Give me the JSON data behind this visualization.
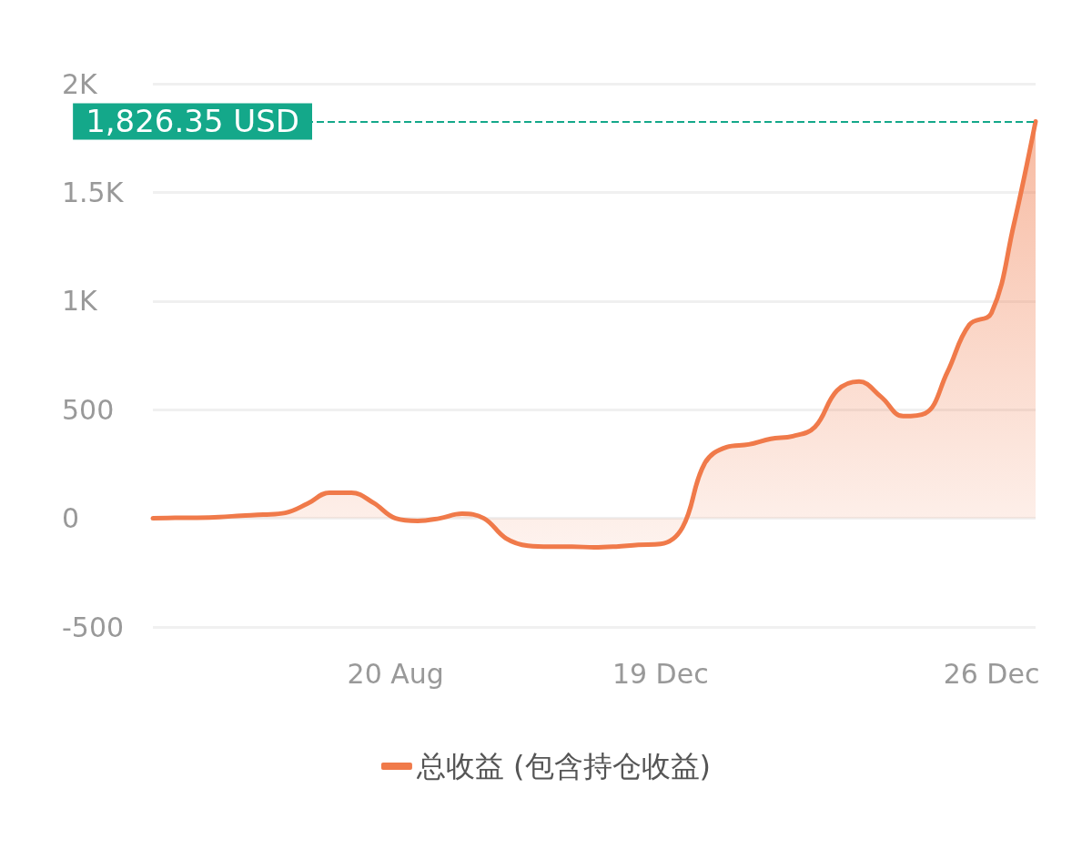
{
  "chart_data": {
    "type": "area",
    "categories": [
      null,
      null,
      null,
      null,
      null,
      null,
      null,
      null,
      null,
      null,
      null,
      "20 Aug",
      null,
      null,
      null,
      null,
      null,
      null,
      null,
      null,
      null,
      null,
      null,
      "19 Dec",
      null,
      null,
      null,
      null,
      null,
      null,
      null,
      null,
      null,
      null,
      null,
      null,
      null,
      null,
      "26 Dec",
      null,
      null
    ],
    "series": [
      {
        "name": "总收益 (包含持仓收益)",
        "color": "#f07a4a",
        "values": [
          0,
          2,
          3,
          6,
          12,
          17,
          25,
          67,
          118,
          118,
          71,
          0,
          -12,
          0,
          21,
          0,
          -92,
          -126,
          -130,
          -130,
          -134,
          -130,
          -122,
          -118,
          -42,
          252,
          328,
          340,
          366,
          378,
          420,
          588,
          630,
          559,
          470,
          483,
          672,
          891,
          945,
          1345,
          1826.35
        ]
      }
    ],
    "ylim": [
      -500,
      2000
    ],
    "yticks": [
      -500,
      0,
      500,
      {
        "value": 1000,
        "label": "1K"
      },
      {
        "value": 1500,
        "label": "1.5K"
      },
      {
        "value": 2000,
        "label": "2K"
      }
    ],
    "ref_lines": [
      {
        "axis": "y",
        "value": 1826.35,
        "label": "1,826.35 USD",
        "color": "#14a88a",
        "line_style": "dashed"
      }
    ],
    "grid": "y",
    "legend": "bottom",
    "marker": "none"
  }
}
